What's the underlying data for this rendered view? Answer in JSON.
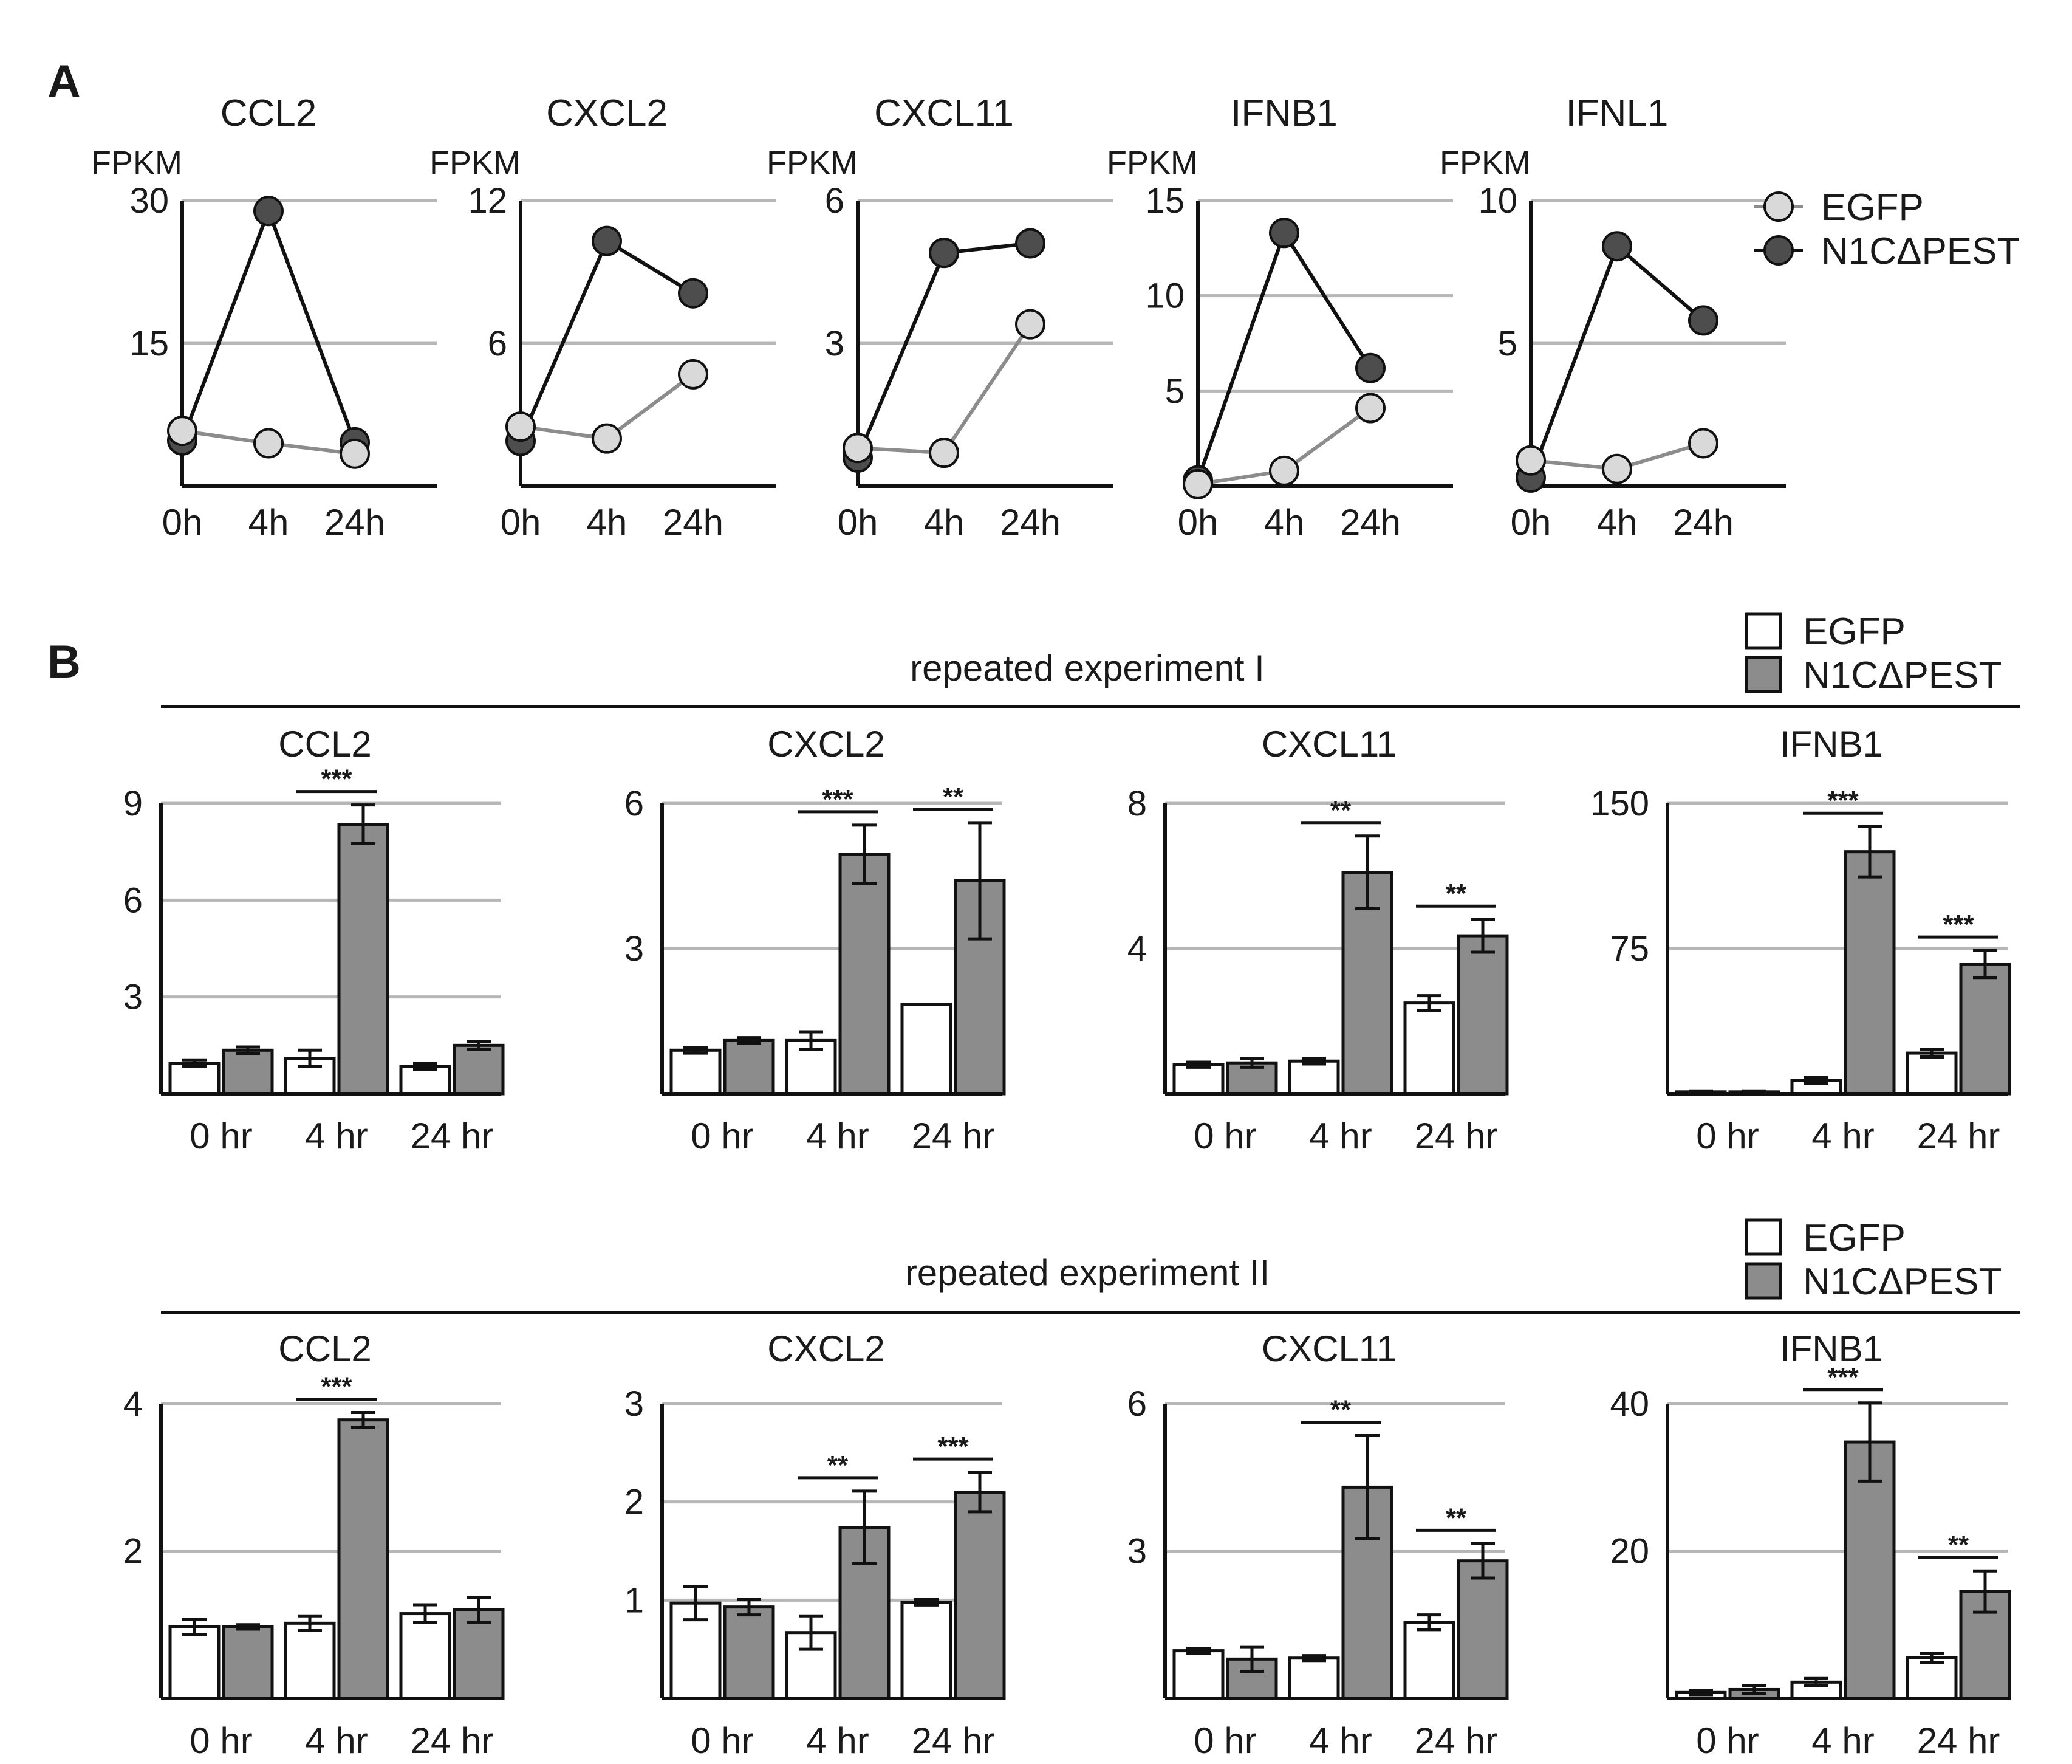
{
  "figure": {
    "panel_a_label": "A",
    "panel_b_label": "B",
    "colors": {
      "axis": "#111111",
      "grid": "#b7b7b7",
      "egfp_point": "#d9d9d9",
      "n1c_point": "#4d4d4d",
      "egfp_line": "#8c8c8c",
      "n1c_line": "#111111",
      "egfp_bar": "#ffffff",
      "n1c_bar": "#8c8c8c"
    }
  },
  "legend_a": {
    "items": [
      "EGFP",
      "N1CΔPEST"
    ]
  },
  "panel_b": {
    "experiments": [
      {
        "title": "repeated experiment I",
        "legend": [
          "EGFP",
          "N1CΔPEST"
        ]
      },
      {
        "title": "repeated experiment II",
        "legend": [
          "EGFP",
          "N1CΔPEST"
        ]
      }
    ]
  },
  "chart_data": [
    {
      "panel": "A",
      "type": "line",
      "title": "CCL2",
      "ylabel": "FPKM",
      "categories": [
        "0h",
        "4h",
        "24h"
      ],
      "ylim": [
        0,
        30
      ],
      "yticks": [
        15,
        30
      ],
      "series": [
        {
          "name": "EGFP",
          "values": [
            5.8,
            4.5,
            3.4
          ]
        },
        {
          "name": "N1CΔPEST",
          "values": [
            4.8,
            28.9,
            4.6
          ]
        }
      ]
    },
    {
      "panel": "A",
      "type": "line",
      "title": "CXCL2",
      "ylabel": "FPKM",
      "categories": [
        "0h",
        "4h",
        "24h"
      ],
      "ylim": [
        0,
        12
      ],
      "yticks": [
        6,
        12
      ],
      "series": [
        {
          "name": "EGFP",
          "values": [
            2.5,
            2.0,
            4.7
          ]
        },
        {
          "name": "N1CΔPEST",
          "values": [
            1.9,
            10.3,
            8.1
          ]
        }
      ]
    },
    {
      "panel": "A",
      "type": "line",
      "title": "CXCL11",
      "ylabel": "FPKM",
      "categories": [
        "0h",
        "4h",
        "24h"
      ],
      "ylim": [
        0,
        6
      ],
      "yticks": [
        3,
        6
      ],
      "series": [
        {
          "name": "EGFP",
          "values": [
            0.8,
            0.7,
            3.4
          ]
        },
        {
          "name": "N1CΔPEST",
          "values": [
            0.6,
            4.9,
            5.1
          ]
        }
      ]
    },
    {
      "panel": "A",
      "type": "line",
      "title": "IFNB1",
      "ylabel": "FPKM",
      "categories": [
        "0h",
        "4h",
        "24h"
      ],
      "ylim": [
        0,
        15
      ],
      "yticks": [
        5,
        10,
        15
      ],
      "series": [
        {
          "name": "EGFP",
          "values": [
            0.1,
            0.8,
            4.1
          ]
        },
        {
          "name": "N1CΔPEST",
          "values": [
            0.3,
            13.3,
            6.2
          ]
        }
      ]
    },
    {
      "panel": "A",
      "type": "line",
      "title": "IFNL1",
      "ylabel": "FPKM",
      "categories": [
        "0h",
        "4h",
        "24h"
      ],
      "ylim": [
        0,
        10
      ],
      "yticks": [
        5,
        10
      ],
      "series": [
        {
          "name": "EGFP",
          "values": [
            0.9,
            0.6,
            1.5
          ]
        },
        {
          "name": "N1CΔPEST",
          "values": [
            0.3,
            8.4,
            5.8
          ]
        }
      ]
    },
    {
      "panel": "B",
      "experiment": "repeated experiment I",
      "type": "bar",
      "title": "CCL2",
      "categories": [
        "0 hr",
        "4 hr",
        "24 hr"
      ],
      "ylim": [
        0,
        9
      ],
      "yticks": [
        3,
        6,
        9
      ],
      "series": [
        {
          "name": "EGFP",
          "values": [
            0.95,
            1.1,
            0.85
          ],
          "errors": [
            0.1,
            0.25,
            0.1
          ]
        },
        {
          "name": "N1CΔPEST",
          "values": [
            1.35,
            8.35,
            1.5
          ],
          "errors": [
            0.1,
            0.6,
            0.12
          ]
        }
      ],
      "significance": [
        {
          "category": "4 hr",
          "label": "***"
        }
      ]
    },
    {
      "panel": "B",
      "experiment": "repeated experiment I",
      "type": "bar",
      "title": "CXCL2",
      "categories": [
        "0 hr",
        "4 hr",
        "24 hr"
      ],
      "ylim": [
        0,
        6
      ],
      "yticks": [
        3,
        6
      ],
      "series": [
        {
          "name": "EGFP",
          "values": [
            0.9,
            1.1,
            1.85
          ],
          "errors": [
            0.06,
            0.18,
            0
          ]
        },
        {
          "name": "N1CΔPEST",
          "values": [
            1.1,
            4.95,
            4.4
          ],
          "errors": [
            0.06,
            0.6,
            1.2
          ]
        }
      ],
      "significance": [
        {
          "category": "4 hr",
          "label": "***"
        },
        {
          "category": "24 hr",
          "label": "**"
        }
      ]
    },
    {
      "panel": "B",
      "experiment": "repeated experiment I",
      "type": "bar",
      "title": "CXCL11",
      "categories": [
        "0 hr",
        "4 hr",
        "24 hr"
      ],
      "ylim": [
        0,
        8
      ],
      "yticks": [
        4,
        8
      ],
      "series": [
        {
          "name": "EGFP",
          "values": [
            0.8,
            0.9,
            2.5
          ],
          "errors": [
            0.07,
            0.08,
            0.2
          ]
        },
        {
          "name": "N1CΔPEST",
          "values": [
            0.85,
            6.1,
            4.35
          ],
          "errors": [
            0.12,
            1.0,
            0.45
          ]
        }
      ],
      "significance": [
        {
          "category": "4 hr",
          "label": "**"
        },
        {
          "category": "24 hr",
          "label": "**"
        }
      ]
    },
    {
      "panel": "B",
      "experiment": "repeated experiment I",
      "type": "bar",
      "title": "IFNB1",
      "categories": [
        "0 hr",
        "4 hr",
        "24 hr"
      ],
      "ylim": [
        0,
        150
      ],
      "yticks": [
        75,
        150
      ],
      "series": [
        {
          "name": "EGFP",
          "values": [
            1,
            7,
            21
          ],
          "errors": [
            0.5,
            1.5,
            2
          ]
        },
        {
          "name": "N1CΔPEST",
          "values": [
            1,
            125,
            67
          ],
          "errors": [
            0.5,
            13,
            7
          ]
        }
      ],
      "significance": [
        {
          "category": "4 hr",
          "label": "***"
        },
        {
          "category": "24 hr",
          "label": "***"
        }
      ]
    },
    {
      "panel": "B",
      "experiment": "repeated experiment II",
      "type": "bar",
      "title": "CCL2",
      "categories": [
        "0 hr",
        "4 hr",
        "24 hr"
      ],
      "ylim": [
        0,
        4
      ],
      "yticks": [
        2,
        4
      ],
      "series": [
        {
          "name": "EGFP",
          "values": [
            0.97,
            1.02,
            1.15
          ],
          "errors": [
            0.1,
            0.1,
            0.12
          ]
        },
        {
          "name": "N1CΔPEST",
          "values": [
            0.97,
            3.78,
            1.2
          ],
          "errors": [
            0.03,
            0.1,
            0.17
          ]
        }
      ],
      "significance": [
        {
          "category": "4 hr",
          "label": "***"
        }
      ]
    },
    {
      "panel": "B",
      "experiment": "repeated experiment II",
      "type": "bar",
      "title": "CXCL2",
      "categories": [
        "0 hr",
        "4 hr",
        "24 hr"
      ],
      "ylim": [
        0,
        3
      ],
      "yticks": [
        1,
        2,
        3
      ],
      "series": [
        {
          "name": "EGFP",
          "values": [
            0.97,
            0.67,
            0.98
          ],
          "errors": [
            0.17,
            0.17,
            0.03
          ]
        },
        {
          "name": "N1CΔPEST",
          "values": [
            0.93,
            1.74,
            2.1
          ],
          "errors": [
            0.08,
            0.37,
            0.2
          ]
        }
      ],
      "significance": [
        {
          "category": "4 hr",
          "label": "**"
        },
        {
          "category": "24 hr",
          "label": "***"
        }
      ]
    },
    {
      "panel": "B",
      "experiment": "repeated experiment II",
      "type": "bar",
      "title": "CXCL11",
      "categories": [
        "0 hr",
        "4 hr",
        "24 hr"
      ],
      "ylim": [
        0,
        6
      ],
      "yticks": [
        3,
        6
      ],
      "series": [
        {
          "name": "EGFP",
          "values": [
            0.97,
            0.82,
            1.55
          ],
          "errors": [
            0.05,
            0.05,
            0.15
          ]
        },
        {
          "name": "N1CΔPEST",
          "values": [
            0.8,
            4.3,
            2.8
          ],
          "errors": [
            0.25,
            1.05,
            0.35
          ]
        }
      ],
      "significance": [
        {
          "category": "4 hr",
          "label": "**"
        },
        {
          "category": "24 hr",
          "label": "**"
        }
      ]
    },
    {
      "panel": "B",
      "experiment": "repeated experiment II",
      "type": "bar",
      "title": "IFNB1",
      "categories": [
        "0 hr",
        "4 hr",
        "24 hr"
      ],
      "ylim": [
        0,
        40
      ],
      "yticks": [
        20,
        40
      ],
      "series": [
        {
          "name": "EGFP",
          "values": [
            0.8,
            2.2,
            5.5
          ],
          "errors": [
            0.3,
            0.5,
            0.6
          ]
        },
        {
          "name": "N1CΔPEST",
          "values": [
            1.2,
            34.8,
            14.5
          ],
          "errors": [
            0.5,
            5.3,
            2.8
          ]
        }
      ],
      "significance": [
        {
          "category": "4 hr",
          "label": "***"
        },
        {
          "category": "24 hr",
          "label": "**"
        }
      ]
    }
  ]
}
